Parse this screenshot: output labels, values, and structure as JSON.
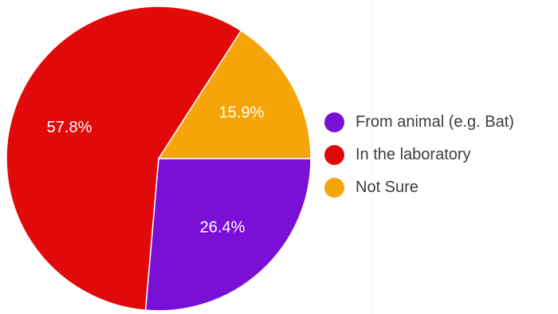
{
  "chart_data": {
    "type": "pie",
    "title": "",
    "slices": [
      {
        "label": "From animal (e.g. Bat)",
        "value": 26.4,
        "display": "26.4%",
        "color": "#7a0fd6"
      },
      {
        "label": "In the laboratory",
        "value": 57.8,
        "display": "57.8%",
        "color": "#e10a0a"
      },
      {
        "label": "Not Sure",
        "value": 15.9,
        "display": "15.9%",
        "color": "#f5a50a"
      }
    ],
    "legend_position": "right",
    "start_angle": "3 o'clock",
    "direction": "clockwise"
  },
  "legend": {
    "items": [
      {
        "label": "From animal (e.g. Bat)",
        "color": "#7a0fd6"
      },
      {
        "label": "In the laboratory",
        "color": "#e10a0a"
      },
      {
        "label": "Not Sure",
        "color": "#f5a50a"
      }
    ]
  }
}
